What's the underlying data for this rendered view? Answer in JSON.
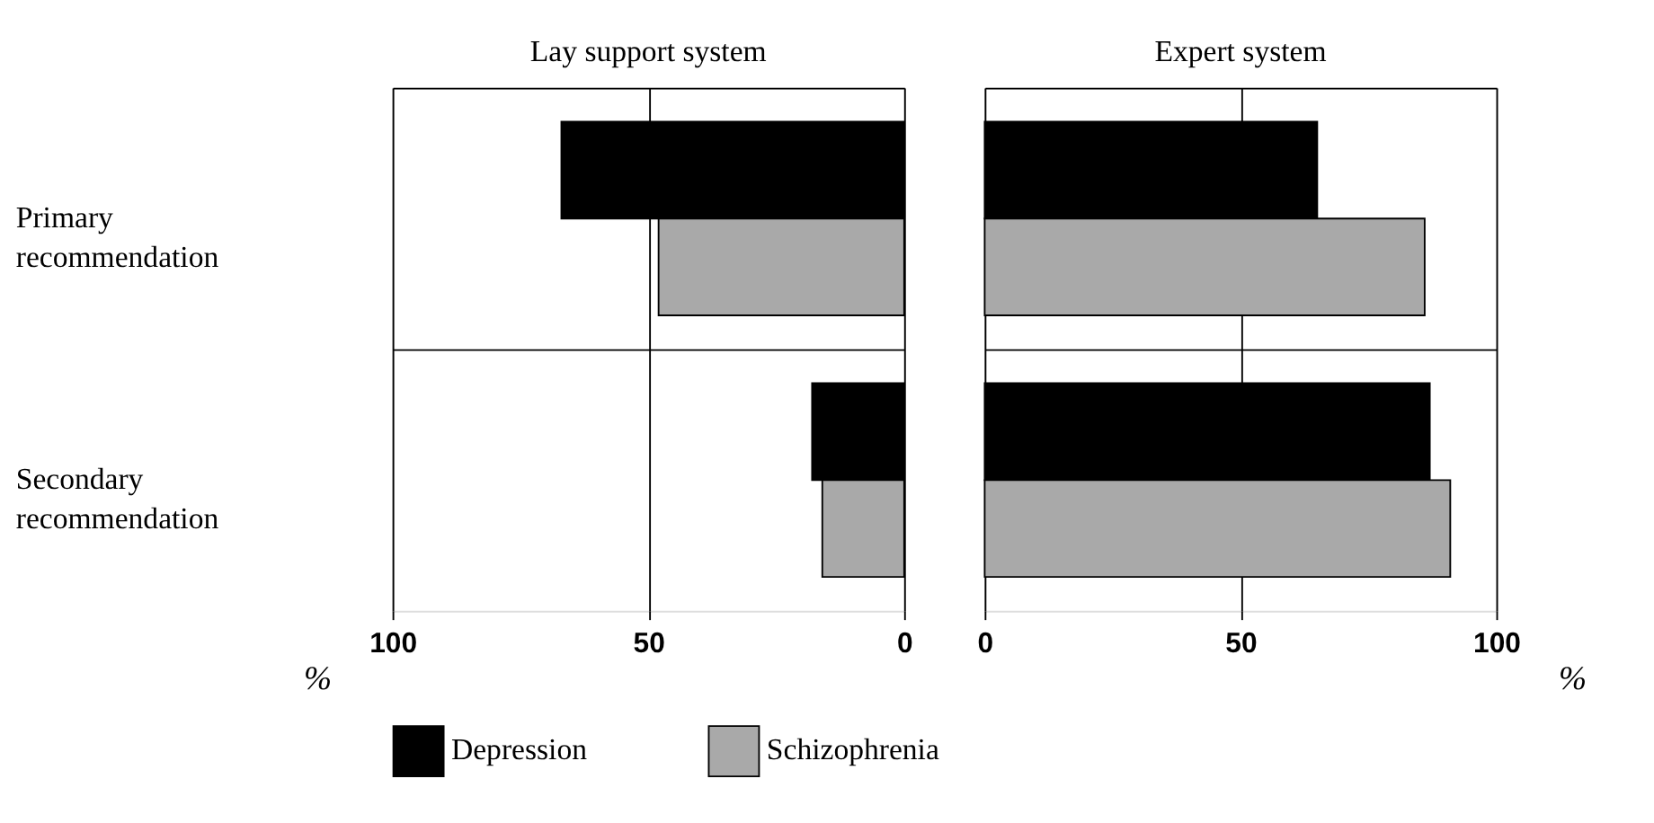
{
  "chart_data": [
    {
      "type": "bar",
      "orientation": "horizontal",
      "title": "Lay support  system",
      "xlabel": "%",
      "categories": [
        "Primary recommendation",
        "Secondary recommendation"
      ],
      "series": [
        {
          "name": "Depression",
          "color": "#000000",
          "values": [
            67,
            18
          ]
        },
        {
          "name": "Schizophrenia",
          "color": "#a9a9a9",
          "values": [
            48,
            16
          ]
        }
      ],
      "xlim": [
        100,
        0
      ],
      "xticks": [
        100,
        50,
        0
      ],
      "grid": true,
      "legend": "bottom"
    },
    {
      "type": "bar",
      "orientation": "horizontal",
      "title": "Expert system",
      "xlabel": "%",
      "categories": [
        null,
        null
      ],
      "series": [
        {
          "color": "#000000",
          "values": [
            65,
            87
          ]
        },
        {
          "color": "#a9a9a9",
          "values": [
            86,
            91
          ]
        }
      ],
      "xlim": [
        0,
        100
      ],
      "xticks": [
        0,
        50,
        100
      ],
      "grid": true,
      "tick_labels": "x"
    }
  ]
}
